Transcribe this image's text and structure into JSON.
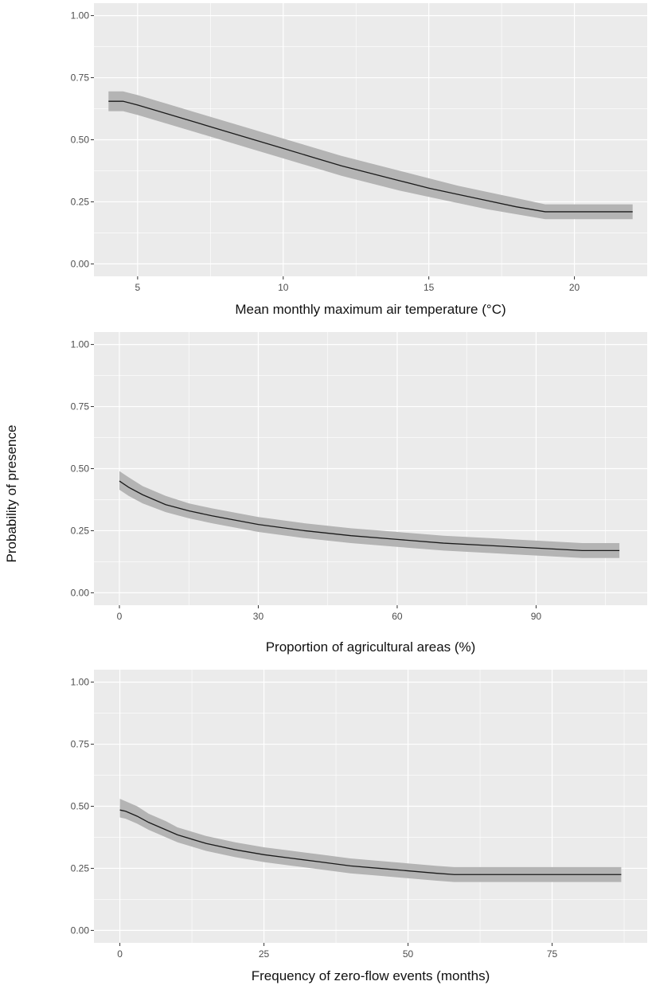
{
  "ylabel": "Probability of presence",
  "colors": {
    "panel": "#ebebeb",
    "grid": "#ffffff",
    "ribbon": "#b4b4b4",
    "line": "#1a1a1a",
    "tick": "#4d4d4d"
  },
  "chart_data": [
    {
      "type": "line",
      "xlabel": "Mean monthly maximum air temperature (°C)",
      "ylabel": "Probability of presence",
      "xlim": [
        3.5,
        22.5
      ],
      "ylim": [
        -0.05,
        1.05
      ],
      "x_ticks": [
        5,
        10,
        15,
        20
      ],
      "y_ticks": [
        0,
        0.25,
        0.5,
        0.75,
        1.0
      ],
      "y_tick_labels": [
        "0.00",
        "0.25",
        "0.50",
        "0.75",
        "1.00"
      ],
      "grid": true,
      "series": [
        {
          "x": [
            4,
            4.5,
            5,
            6,
            7,
            8,
            9,
            10,
            11,
            12,
            13,
            14,
            15,
            16,
            17,
            18,
            19,
            20,
            21,
            22
          ],
          "y": [
            0.655,
            0.655,
            0.64,
            0.605,
            0.57,
            0.535,
            0.5,
            0.465,
            0.43,
            0.395,
            0.365,
            0.335,
            0.305,
            0.28,
            0.255,
            0.23,
            0.21,
            0.21,
            0.21,
            0.21
          ],
          "lower": [
            0.615,
            0.615,
            0.6,
            0.565,
            0.53,
            0.495,
            0.46,
            0.425,
            0.39,
            0.355,
            0.325,
            0.295,
            0.27,
            0.245,
            0.22,
            0.2,
            0.18,
            0.18,
            0.18,
            0.18
          ],
          "upper": [
            0.695,
            0.695,
            0.68,
            0.645,
            0.61,
            0.575,
            0.54,
            0.505,
            0.47,
            0.435,
            0.405,
            0.375,
            0.345,
            0.315,
            0.29,
            0.265,
            0.24,
            0.24,
            0.24,
            0.24
          ]
        }
      ]
    },
    {
      "type": "line",
      "xlabel": "Proportion of agricultural areas (%)",
      "ylabel": "Probability of presence",
      "xlim": [
        -5.5,
        114
      ],
      "ylim": [
        -0.05,
        1.05
      ],
      "x_ticks": [
        0,
        30,
        60,
        90
      ],
      "y_ticks": [
        0,
        0.25,
        0.5,
        0.75,
        1.0
      ],
      "y_tick_labels": [
        "0.00",
        "0.25",
        "0.50",
        "0.75",
        "1.00"
      ],
      "grid": true,
      "series": [
        {
          "x": [
            0,
            2,
            5,
            10,
            15,
            20,
            30,
            40,
            50,
            60,
            70,
            80,
            90,
            100,
            108
          ],
          "y": [
            0.45,
            0.425,
            0.395,
            0.355,
            0.33,
            0.31,
            0.275,
            0.25,
            0.23,
            0.215,
            0.2,
            0.19,
            0.18,
            0.17,
            0.17
          ],
          "lower": [
            0.415,
            0.39,
            0.36,
            0.325,
            0.3,
            0.28,
            0.245,
            0.22,
            0.2,
            0.185,
            0.17,
            0.16,
            0.15,
            0.14,
            0.14
          ],
          "upper": [
            0.49,
            0.465,
            0.43,
            0.39,
            0.36,
            0.34,
            0.305,
            0.28,
            0.26,
            0.245,
            0.23,
            0.22,
            0.21,
            0.2,
            0.2
          ]
        }
      ]
    },
    {
      "type": "line",
      "xlabel": "Frequency of zero-flow events (months)",
      "ylabel": "Probability of presence",
      "xlim": [
        -4.5,
        91.5
      ],
      "ylim": [
        -0.05,
        1.05
      ],
      "x_ticks": [
        0,
        25,
        50,
        75
      ],
      "y_ticks": [
        0,
        0.25,
        0.5,
        0.75,
        1.0
      ],
      "y_tick_labels": [
        "0.00",
        "0.25",
        "0.50",
        "0.75",
        "1.00"
      ],
      "grid": true,
      "series": [
        {
          "x": [
            0,
            1,
            3,
            5,
            8,
            10,
            15,
            20,
            25,
            30,
            35,
            40,
            45,
            50,
            55,
            58,
            60,
            65,
            70,
            75,
            80,
            87
          ],
          "y": [
            0.485,
            0.48,
            0.46,
            0.435,
            0.405,
            0.385,
            0.35,
            0.325,
            0.305,
            0.29,
            0.275,
            0.26,
            0.25,
            0.24,
            0.23,
            0.225,
            0.225,
            0.225,
            0.225,
            0.225,
            0.225,
            0.225
          ],
          "lower": [
            0.455,
            0.45,
            0.43,
            0.405,
            0.375,
            0.355,
            0.32,
            0.295,
            0.275,
            0.26,
            0.245,
            0.23,
            0.22,
            0.21,
            0.2,
            0.195,
            0.195,
            0.195,
            0.195,
            0.195,
            0.195,
            0.195
          ],
          "upper": [
            0.53,
            0.52,
            0.5,
            0.47,
            0.44,
            0.415,
            0.38,
            0.355,
            0.335,
            0.32,
            0.305,
            0.29,
            0.28,
            0.27,
            0.26,
            0.255,
            0.255,
            0.255,
            0.255,
            0.255,
            0.255,
            0.255
          ]
        }
      ]
    }
  ]
}
